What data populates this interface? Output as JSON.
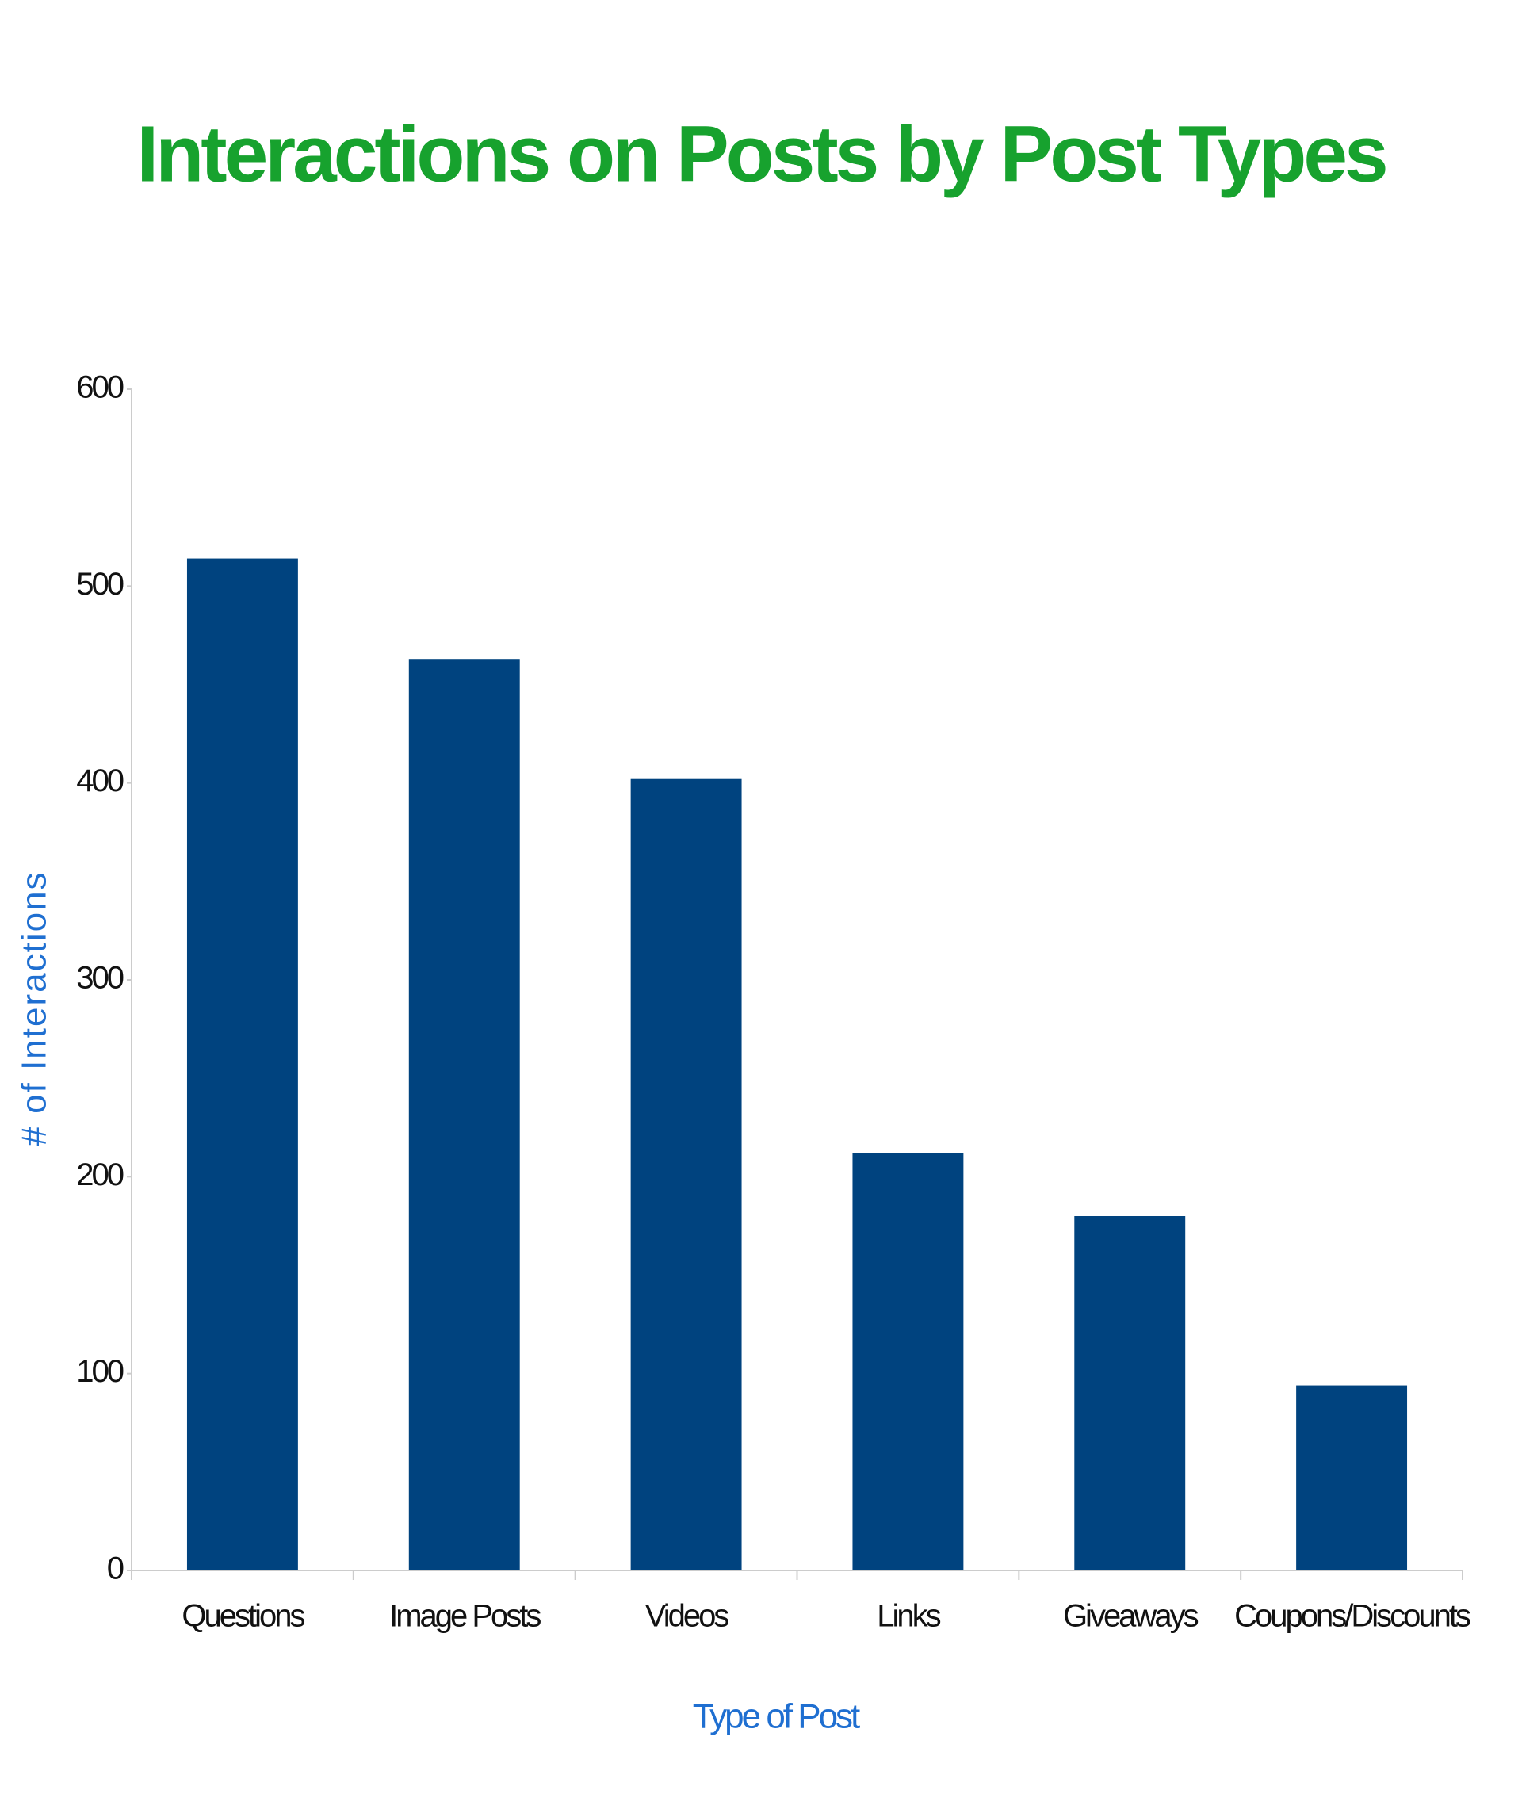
{
  "chart_data": {
    "type": "bar",
    "title": "Interactions on Posts by Post Types",
    "x_label": "Type of Post",
    "y_label": "# of Interactions",
    "categories": [
      "Questions",
      "Image Posts",
      "Videos",
      "Links",
      "Giveaways",
      "Coupons/Discounts"
    ],
    "values": [
      514,
      463,
      402,
      212,
      180,
      94
    ],
    "color": "#00437f",
    "ylim": [
      0,
      600
    ],
    "yticks": [
      0,
      100,
      200,
      300,
      400,
      500,
      600
    ],
    "grid": false
  }
}
